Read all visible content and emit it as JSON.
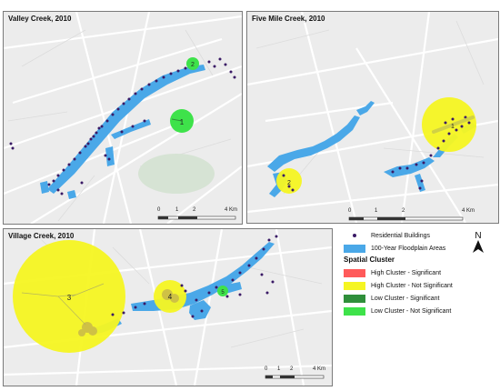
{
  "panels": {
    "valley": {
      "title": "Valley Creek, 2010",
      "clusters": [
        {
          "label": "1",
          "type": "low_not_significant"
        },
        {
          "label": "2",
          "type": "low_not_significant"
        }
      ]
    },
    "five_mile": {
      "title": "Five Mile Creek, 2010",
      "clusters": [
        {
          "label": "1",
          "type": "high_not_significant"
        },
        {
          "label": "2",
          "type": "high_not_significant"
        }
      ]
    },
    "village": {
      "title": "Village Creek, 2010",
      "clusters": [
        {
          "label": "3",
          "type": "high_not_significant"
        },
        {
          "label": "4",
          "type": "high_not_significant"
        },
        {
          "label": "5",
          "type": "low_not_significant"
        }
      ]
    }
  },
  "scale_bar": {
    "ticks": [
      "0",
      "1",
      "2",
      "4 Km"
    ]
  },
  "legend": {
    "residential_label": "Residential Buildings",
    "floodplain_label": "100-Year Floodplain Areas",
    "spatial_title": "Spatial Cluster",
    "items": [
      {
        "label": "High Cluster - Significant",
        "color": "#ff5a5a"
      },
      {
        "label": "High Cluster - Not Significant",
        "color": "#f5f522"
      },
      {
        "label": "Low Cluster - Significant",
        "color": "#2f8f3a"
      },
      {
        "label": "Low Cluster - Not Significant",
        "color": "#3ee24a"
      }
    ]
  },
  "north_label": "N",
  "colors": {
    "floodplain": "#4aa8e8",
    "residential": "#3a1a66",
    "map_bg": "#ececec",
    "roads": "#ffffff"
  }
}
